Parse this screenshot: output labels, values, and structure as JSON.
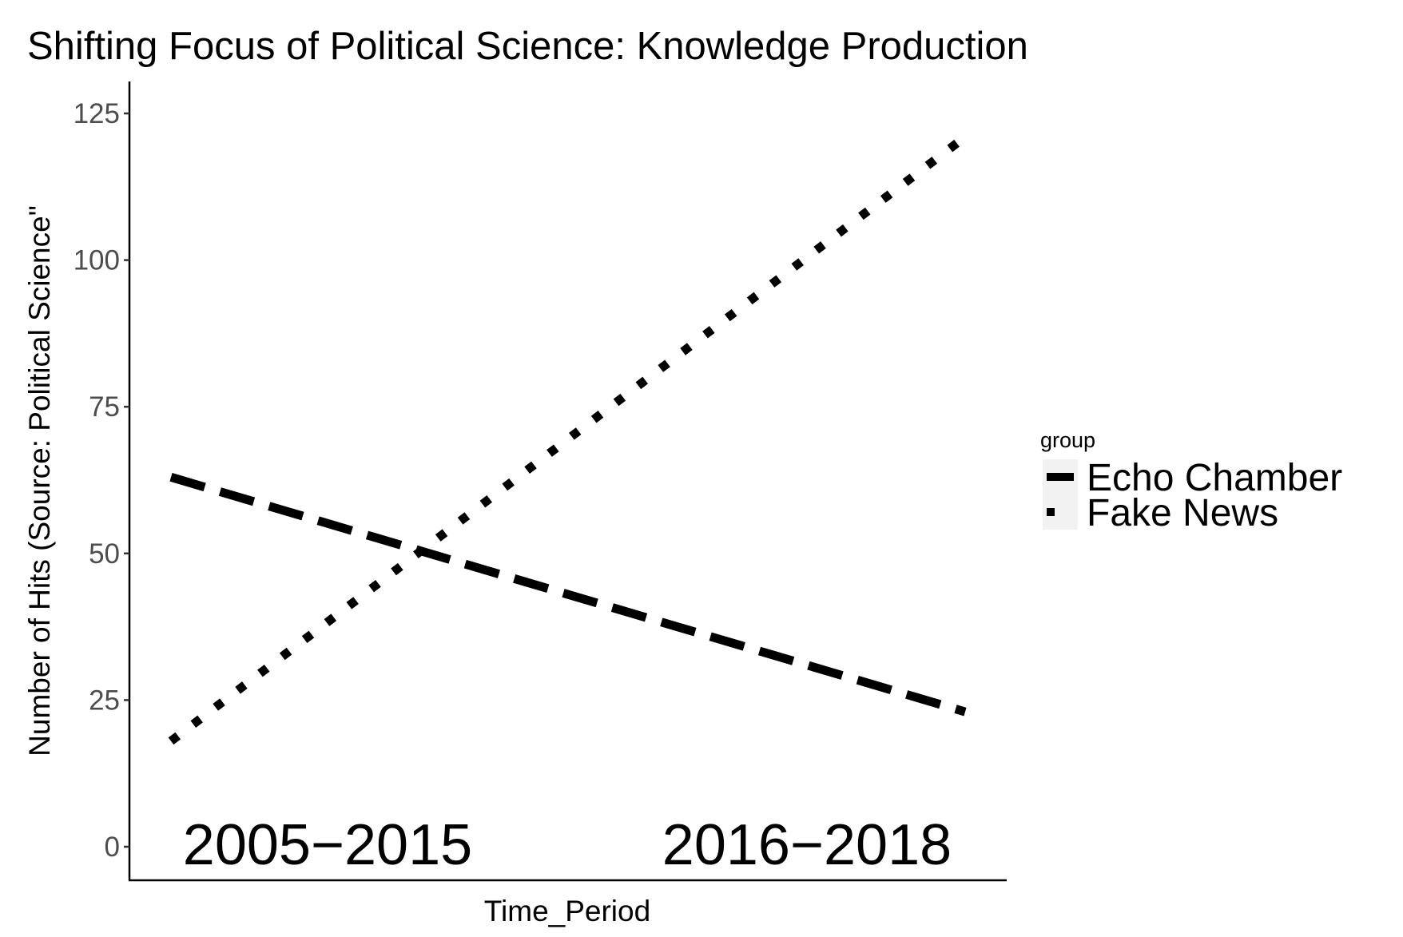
{
  "chart_data": {
    "type": "line",
    "title": "Shifting Focus of Political Science: Knowledge Production",
    "xlabel": "Time_Period",
    "ylabel": "Number of Hits (Source: Political Science\"",
    "categories": [
      "2005−2015",
      "2016−2018"
    ],
    "ylim": [
      0,
      130
    ],
    "yticks": [
      0,
      25,
      50,
      75,
      100,
      125
    ],
    "ytick_labels": [
      "0",
      "25",
      "50",
      "75",
      "100",
      "125"
    ],
    "grid": false,
    "legend": {
      "title": "group",
      "placement": "right"
    },
    "series": [
      {
        "name": "Echo Chamber",
        "values": [
          63,
          23
        ],
        "linetype": "longdash",
        "color": "#000000"
      },
      {
        "name": "Fake News",
        "values": [
          18,
          121
        ],
        "linetype": "dotted",
        "color": "#000000"
      }
    ],
    "annotations": [
      {
        "text": "2005−2015",
        "x": "2005−2015",
        "y": 0
      },
      {
        "text": "2016−2018",
        "x": "2016−2018",
        "y": 0
      }
    ]
  }
}
